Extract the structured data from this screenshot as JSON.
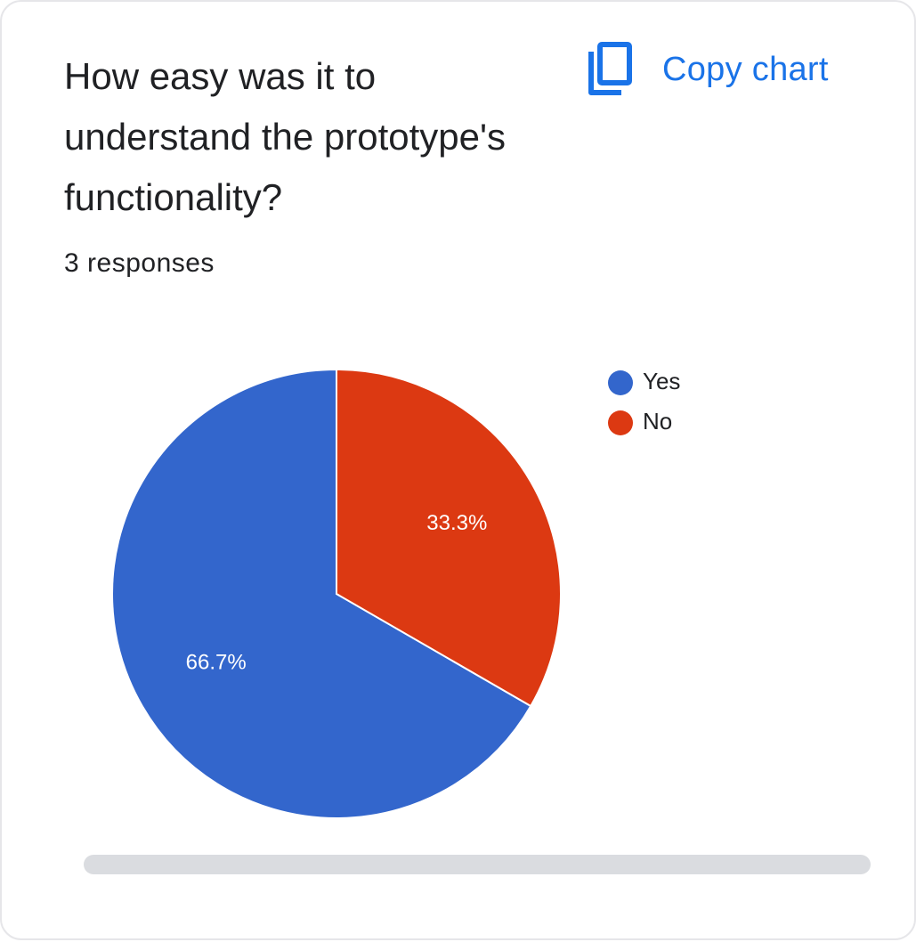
{
  "card": {
    "title": "How easy was it to understand the prototype's functionality?",
    "responses": "3 responses",
    "copy_label": "Copy chart",
    "copy_icon": "copy-icon"
  },
  "colors": {
    "accent": "#1a73e8",
    "yes": "#3366cc",
    "no": "#dc3912"
  },
  "chart_data": {
    "type": "pie",
    "title": "How easy was it to understand the prototype's functionality?",
    "total_responses": 3,
    "categories": [
      "Yes",
      "No"
    ],
    "values": [
      2,
      1
    ],
    "percent_labels": [
      "66.7%",
      "33.3%"
    ],
    "colors": [
      "#3366cc",
      "#dc3912"
    ],
    "legend_position": "top-right"
  }
}
